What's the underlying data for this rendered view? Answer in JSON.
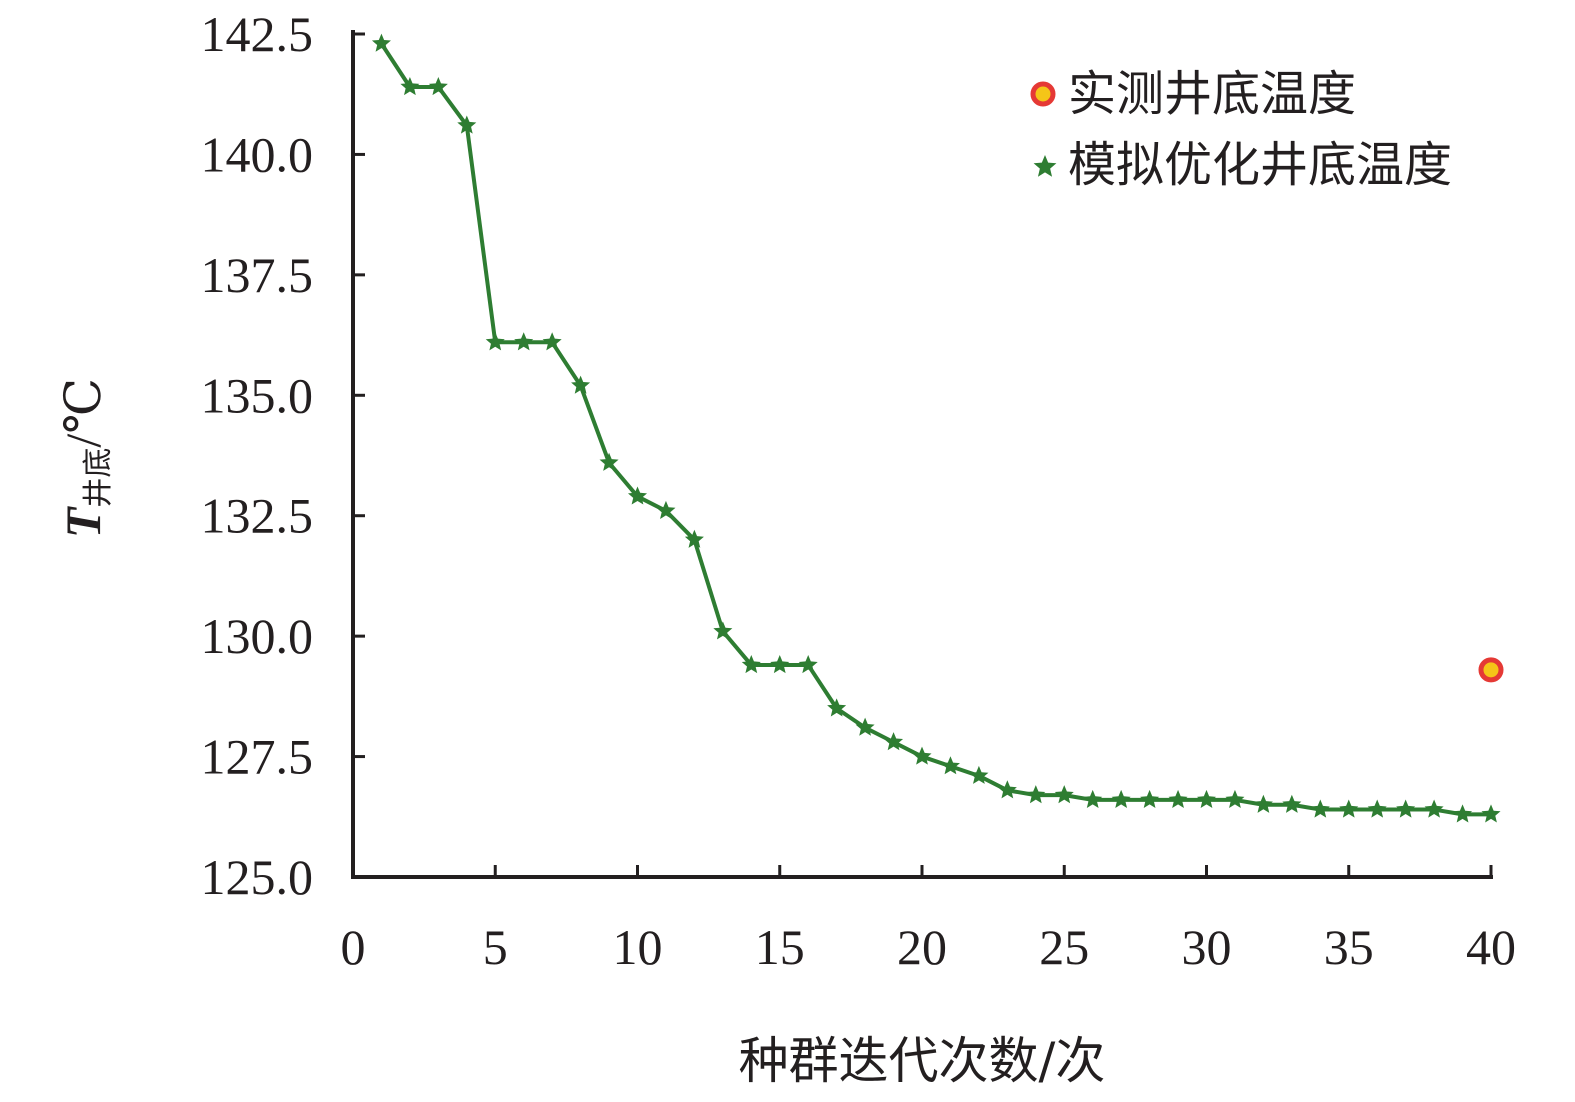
{
  "chart_data": {
    "type": "line",
    "xlabel": "种群迭代次数/次",
    "ylabel": {
      "symbol": "T",
      "subscript": "井底",
      "unit": "/℃"
    },
    "xlim": [
      0,
      40
    ],
    "ylim": [
      125.0,
      142.5
    ],
    "x_ticks": [
      "0",
      "5",
      "10",
      "15",
      "20",
      "25",
      "30",
      "35",
      "40"
    ],
    "y_ticks": [
      "125.0",
      "127.5",
      "130.0",
      "132.5",
      "135.0",
      "137.5",
      "140.0",
      "142.5"
    ],
    "grid": false,
    "legend_position": "top-right",
    "series": [
      {
        "name": "模拟优化井底温度",
        "kind": "line-star",
        "color": "#2e7d32",
        "x": [
          1,
          2,
          3,
          4,
          5,
          6,
          7,
          8,
          9,
          10,
          11,
          12,
          13,
          14,
          15,
          16,
          17,
          18,
          19,
          20,
          21,
          22,
          23,
          24,
          25,
          26,
          27,
          28,
          29,
          30,
          31,
          32,
          33,
          34,
          35,
          36,
          37,
          38,
          39,
          40
        ],
        "y": [
          142.3,
          141.4,
          141.4,
          140.6,
          136.1,
          136.1,
          136.1,
          135.2,
          133.6,
          132.9,
          132.6,
          132.0,
          130.1,
          129.4,
          129.4,
          129.4,
          128.5,
          128.1,
          127.8,
          127.5,
          127.3,
          127.1,
          126.8,
          126.7,
          126.7,
          126.6,
          126.6,
          126.6,
          126.6,
          126.6,
          126.6,
          126.5,
          126.5,
          126.4,
          126.4,
          126.4,
          126.4,
          126.4,
          126.3,
          126.3
        ]
      },
      {
        "name": "实测井底温度",
        "kind": "point",
        "color": "#e53935",
        "fill": "#f5c518",
        "x": [
          40
        ],
        "y": [
          129.3
        ]
      }
    ]
  }
}
